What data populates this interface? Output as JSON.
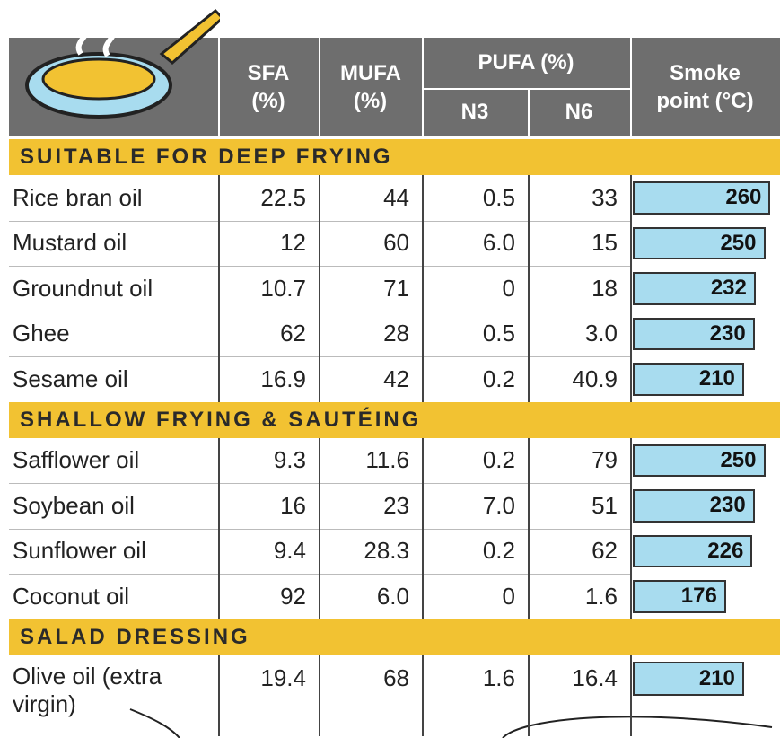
{
  "header": {
    "columns": [
      "SFA (%)",
      "MUFA (%)",
      "PUFA (%)",
      "N3",
      "N6",
      "Smoke point (°C)"
    ]
  },
  "sections": [
    {
      "title": "SUITABLE FOR DEEP FRYING",
      "rows": [
        [
          "Rice bran oil",
          "22.5",
          "44",
          "0.5",
          "33",
          260
        ],
        [
          "Mustard oil",
          "12",
          "60",
          "6.0",
          "15",
          250
        ],
        [
          "Groundnut oil",
          "10.7",
          "71",
          "0",
          "18",
          232
        ],
        [
          "Ghee",
          "62",
          "28",
          "0.5",
          "3.0",
          230
        ],
        [
          "Sesame oil",
          "16.9",
          "42",
          "0.2",
          "40.9",
          210
        ]
      ]
    },
    {
      "title": "SHALLOW FRYING & SAUTÉING",
      "rows": [
        [
          "Safflower oil",
          "9.3",
          "11.6",
          "0.2",
          "79",
          250
        ],
        [
          "Soybean oil",
          "16",
          "23",
          "7.0",
          "51",
          230
        ],
        [
          "Sunflower oil",
          "9.4",
          "28.3",
          "0.2",
          "62",
          226
        ],
        [
          "Coconut oil",
          "92",
          "6.0",
          "0",
          "1.6",
          176
        ]
      ]
    },
    {
      "title": "SALAD DRESSING",
      "rows": [
        [
          "Olive oil (extra virgin)",
          "19.4",
          "68",
          "1.6",
          "16.4",
          210
        ]
      ]
    }
  ]
}
